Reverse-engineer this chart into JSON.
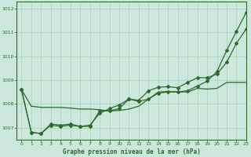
{
  "title": "Graphe pression niveau de la mer (hPa)",
  "bg_color": "#cce8dc",
  "grid_color": "#aacebb",
  "line_color": "#2d6b2d",
  "xlim": [
    -0.5,
    23
  ],
  "ylim": [
    1006.5,
    1012.3
  ],
  "yticks": [
    1007,
    1008,
    1009,
    1010,
    1011,
    1012
  ],
  "xticks": [
    0,
    1,
    2,
    3,
    4,
    5,
    6,
    7,
    8,
    9,
    10,
    11,
    12,
    13,
    14,
    15,
    16,
    17,
    18,
    19,
    20,
    21,
    22,
    23
  ],
  "series1": [
    1008.6,
    1007.9,
    1007.85,
    1007.85,
    1007.85,
    1007.82,
    1007.78,
    1007.78,
    1007.75,
    1007.7,
    1007.72,
    1007.78,
    1007.9,
    1008.2,
    1008.5,
    1008.52,
    1008.5,
    1008.5,
    1008.65,
    1008.62,
    1008.65,
    1008.9,
    1008.9,
    1008.9
  ],
  "series2": [
    1008.6,
    1006.8,
    1006.75,
    1007.1,
    1007.05,
    1007.1,
    1007.05,
    1007.1,
    1007.6,
    1007.8,
    1007.95,
    1008.2,
    1008.15,
    1008.55,
    1008.7,
    1008.72,
    1008.68,
    1008.9,
    1009.1,
    1009.1,
    1009.25,
    1009.75,
    1010.55,
    1011.15
  ],
  "series3": [
    1008.6,
    1006.8,
    1006.75,
    1007.15,
    1007.1,
    1007.15,
    1007.05,
    1007.05,
    1007.7,
    1007.7,
    1007.8,
    1008.2,
    1008.1,
    1008.2,
    1008.45,
    1008.5,
    1008.5,
    1008.55,
    1008.75,
    1008.95,
    1009.35,
    1010.25,
    1011.05,
    1011.85
  ]
}
